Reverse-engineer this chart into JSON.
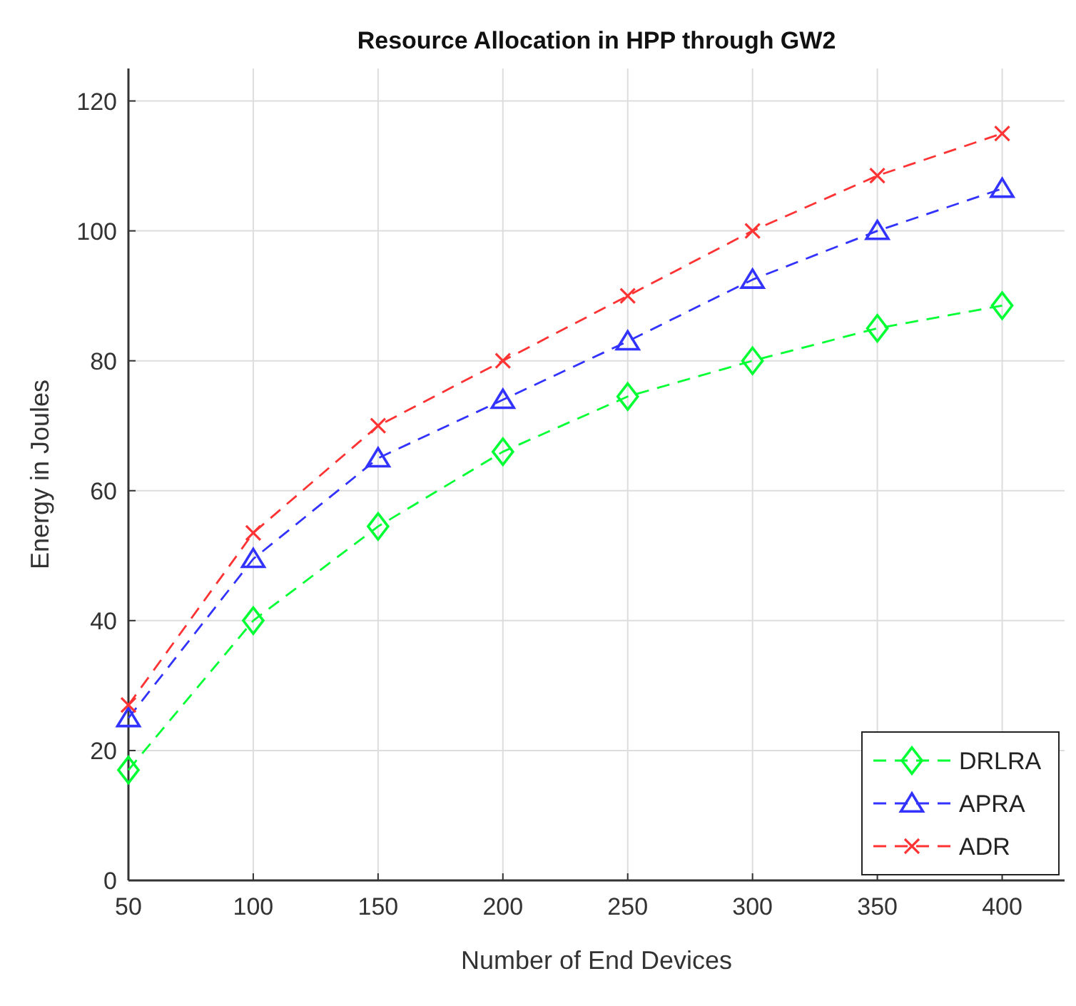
{
  "chart_data": {
    "type": "line",
    "title": "Resource Allocation in HPP through GW2",
    "xlabel": "Number of End Devices",
    "ylabel": "Energy in Joules",
    "x": [
      50,
      100,
      150,
      200,
      250,
      300,
      350,
      400
    ],
    "series": [
      {
        "name": "DRLRA",
        "color": "#00ff33",
        "marker": "diamond",
        "values": [
          17,
          40,
          54.5,
          66,
          74.5,
          80,
          85,
          88.5
        ]
      },
      {
        "name": "APRA",
        "color": "#3333ff",
        "marker": "triangle",
        "values": [
          25,
          49.5,
          65,
          74,
          83,
          92.5,
          100,
          106.5
        ]
      },
      {
        "name": "ADR",
        "color": "#ff3333",
        "marker": "cross",
        "values": [
          27,
          53.5,
          70,
          80,
          90,
          100,
          108.5,
          115
        ]
      }
    ],
    "xlim": [
      50,
      425
    ],
    "xticks": [
      50,
      100,
      150,
      200,
      250,
      300,
      350,
      400
    ],
    "ylim": [
      0,
      125
    ],
    "yticks": [
      0,
      20,
      40,
      60,
      80,
      100,
      120
    ],
    "grid": true,
    "legend": "bottom right",
    "line_style": "dashed"
  }
}
